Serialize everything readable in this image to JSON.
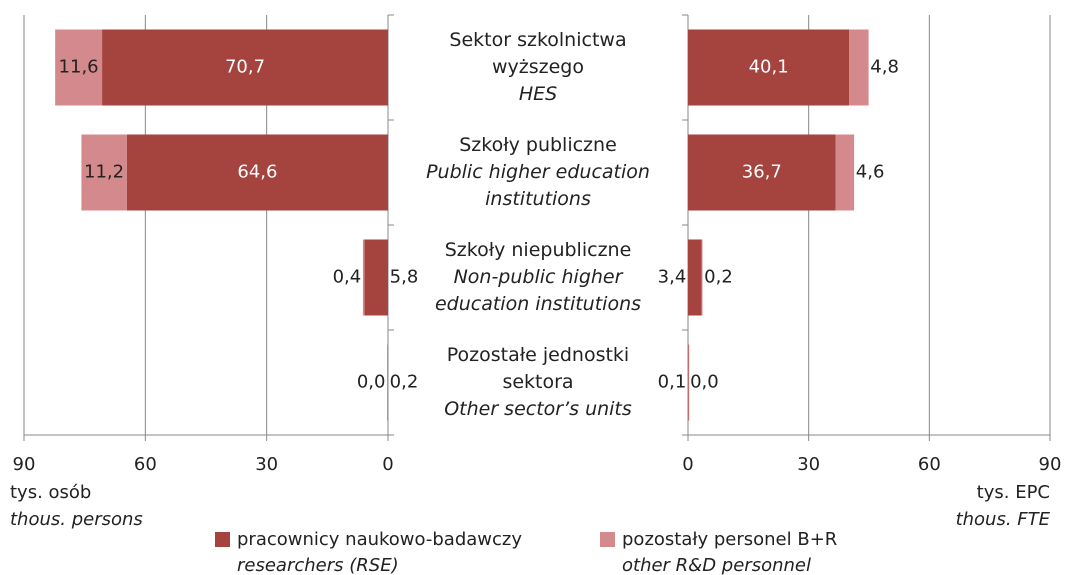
{
  "chart_data": [
    {
      "type": "bar",
      "orientation": "horizontal",
      "stacked": true,
      "categories": [
        {
          "pl": "Sektor szkolnictwa wyższego",
          "en": "HES"
        },
        {
          "pl": "Szkoły publiczne",
          "en": "Public higher education institutions"
        },
        {
          "pl": "Szkoły niepubliczne",
          "en": "Non-public higher education institutions"
        },
        {
          "pl": "Pozostałe jednostki sektora",
          "en": "Other sector’s units"
        }
      ],
      "series": [
        {
          "name": "pracownicy naukowo-badawczy",
          "name_en": "researchers (RSE)",
          "color": "#a5433f",
          "values": [
            70.7,
            64.6,
            5.8,
            0.2
          ],
          "value_labels": [
            "70,7",
            "64,6",
            "5,8",
            "0,2"
          ]
        },
        {
          "name": "pozostały personel B+R",
          "name_en": "other R&D personnel",
          "color": "#d48a8c",
          "values": [
            11.6,
            11.2,
            0.4,
            0.0
          ],
          "value_labels": [
            "11,6",
            "11,2",
            "0,4",
            "0,0"
          ]
        }
      ],
      "xlim": [
        90,
        0
      ],
      "xticks": [
        90,
        60,
        30,
        0
      ],
      "xlabel": "tys. osób",
      "xlabel_en": "thous. persons",
      "grid": true
    },
    {
      "type": "bar",
      "orientation": "horizontal",
      "stacked": true,
      "series": [
        {
          "name": "pracownicy naukowo-badawczy",
          "color": "#a5433f",
          "values": [
            40.1,
            36.7,
            3.4,
            0.1
          ],
          "value_labels": [
            "40,1",
            "36,7",
            "3,4",
            "0,1"
          ]
        },
        {
          "name": "pozostały personel B+R",
          "color": "#d48a8c",
          "values": [
            4.8,
            4.6,
            0.2,
            0.0
          ],
          "value_labels": [
            "4,8",
            "4,6",
            "0,2",
            "0,0"
          ]
        }
      ],
      "xlim": [
        0,
        90
      ],
      "xticks": [
        0,
        30,
        60,
        90
      ],
      "xlabel": "tys. EPC",
      "xlabel_en": "thous. FTE",
      "grid": true
    }
  ]
}
